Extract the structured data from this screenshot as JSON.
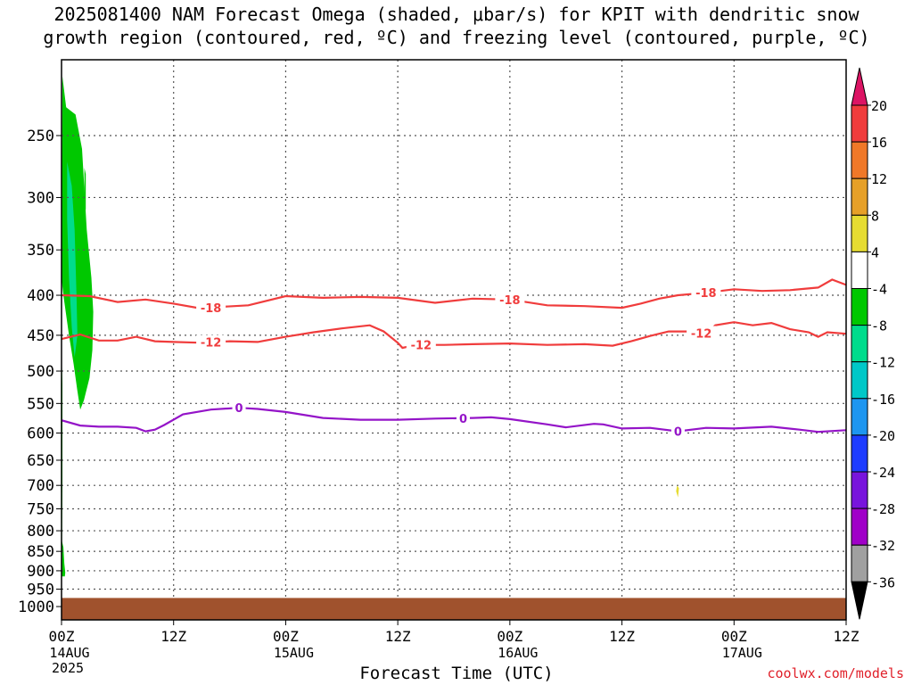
{
  "title_line1": "2025081400 NAM Forecast Omega (shaded, μbar/s) for KPIT with dendritic snow",
  "title_line2": "growth region (contoured, red, ºC) and freezing level (contoured, purple, ºC)",
  "credit": "coolwx.com/models",
  "chart_data": {
    "type": "time-height cross section",
    "title": "2025081400 NAM Forecast Omega (shaded, μbar/s) for KPIT with dendritic snow growth region (contoured, red, ºC) and freezing level (contoured, purple, ºC)",
    "xlabel": "Forecast Time (UTC)",
    "ylabel": "",
    "x_hours_range": [
      0,
      84
    ],
    "x_ticks": [
      {
        "hour": 0,
        "l1": "00Z",
        "l2": "14AUG",
        "l3": "2025"
      },
      {
        "hour": 12,
        "l1": "12Z",
        "l2": "",
        "l3": ""
      },
      {
        "hour": 24,
        "l1": "00Z",
        "l2": "15AUG",
        "l3": ""
      },
      {
        "hour": 36,
        "l1": "12Z",
        "l2": "",
        "l3": ""
      },
      {
        "hour": 48,
        "l1": "00Z",
        "l2": "16AUG",
        "l3": ""
      },
      {
        "hour": 60,
        "l1": "12Z",
        "l2": "",
        "l3": ""
      },
      {
        "hour": 72,
        "l1": "00Z",
        "l2": "17AUG",
        "l3": ""
      },
      {
        "hour": 84,
        "l1": "12Z",
        "l2": "",
        "l3": ""
      }
    ],
    "y_axis": "pressure (mb), log scale, inverted",
    "ylim": [
      200,
      1040
    ],
    "y_ticks": [
      250,
      300,
      350,
      400,
      450,
      500,
      550,
      600,
      650,
      700,
      750,
      800,
      850,
      900,
      950,
      1000
    ],
    "grid": true,
    "contours": [
      {
        "name": "-18",
        "color": "#f03c3c",
        "label_hours": [
          16,
          48,
          69
        ],
        "points": [
          [
            0,
            400
          ],
          [
            3,
            401
          ],
          [
            6,
            408
          ],
          [
            9,
            405
          ],
          [
            12,
            410
          ],
          [
            15,
            416
          ],
          [
            17,
            414
          ],
          [
            20,
            412
          ],
          [
            24,
            401
          ],
          [
            28,
            403
          ],
          [
            32,
            402
          ],
          [
            36,
            403
          ],
          [
            40,
            409
          ],
          [
            44,
            404
          ],
          [
            48,
            405
          ],
          [
            52,
            412
          ],
          [
            56,
            413
          ],
          [
            60,
            415
          ],
          [
            62,
            410
          ],
          [
            64,
            404
          ],
          [
            66,
            400
          ],
          [
            69,
            397
          ],
          [
            72,
            393
          ],
          [
            75,
            395
          ],
          [
            78,
            394
          ],
          [
            81,
            391
          ],
          [
            82.5,
            382
          ],
          [
            84,
            388
          ]
        ]
      },
      {
        "name": "-12",
        "color": "#f03c3c",
        "label_hours": [
          16,
          38.5,
          68.5
        ],
        "points": [
          [
            0,
            455
          ],
          [
            2,
            449
          ],
          [
            4,
            457
          ],
          [
            6,
            457
          ],
          [
            8,
            452
          ],
          [
            10,
            458
          ],
          [
            12,
            459
          ],
          [
            15,
            460
          ],
          [
            18,
            458
          ],
          [
            21,
            459
          ],
          [
            24,
            452
          ],
          [
            27,
            446
          ],
          [
            30,
            441
          ],
          [
            33,
            437
          ],
          [
            34.5,
            445
          ],
          [
            36,
            460
          ],
          [
            36.5,
            467
          ],
          [
            38,
            463
          ],
          [
            41,
            463
          ],
          [
            44,
            462
          ],
          [
            48,
            461
          ],
          [
            52,
            463
          ],
          [
            56,
            462
          ],
          [
            59,
            464
          ],
          [
            61,
            458
          ],
          [
            63,
            451
          ],
          [
            65,
            445
          ],
          [
            67,
            445
          ],
          [
            69,
            448
          ],
          [
            70,
            437
          ],
          [
            72,
            433
          ],
          [
            74,
            437
          ],
          [
            76,
            434
          ],
          [
            78,
            442
          ],
          [
            80,
            446
          ],
          [
            81,
            452
          ],
          [
            82,
            446
          ],
          [
            84,
            448
          ]
        ]
      },
      {
        "name": "0",
        "color": "#9414c8",
        "label_hours": [
          19,
          43,
          66
        ],
        "points": [
          [
            0,
            578
          ],
          [
            2,
            587
          ],
          [
            4,
            589
          ],
          [
            6,
            589
          ],
          [
            8,
            591
          ],
          [
            9,
            597
          ],
          [
            10,
            594
          ],
          [
            11,
            586
          ],
          [
            13,
            568
          ],
          [
            16,
            560
          ],
          [
            19,
            557
          ],
          [
            21,
            559
          ],
          [
            24,
            564
          ],
          [
            28,
            574
          ],
          [
            32,
            577
          ],
          [
            36,
            577
          ],
          [
            40,
            575
          ],
          [
            44,
            574
          ],
          [
            46,
            573
          ],
          [
            48,
            576
          ],
          [
            52,
            585
          ],
          [
            54,
            590
          ],
          [
            57,
            584
          ],
          [
            58,
            585
          ],
          [
            60,
            592
          ],
          [
            63,
            591
          ],
          [
            66,
            597
          ],
          [
            69,
            591
          ],
          [
            72,
            592
          ],
          [
            76,
            589
          ],
          [
            79,
            594
          ],
          [
            81,
            598
          ],
          [
            84,
            595
          ]
        ]
      }
    ],
    "shading": [
      {
        "range": "-8 to -4",
        "color": "#00c800",
        "desc": "upward motion near 00Z-03Z 14AUG from 210 to 560 mb"
      },
      {
        "range": "-12 to -8",
        "color": "#00dc8c",
        "desc": "core near 01Z 14AUG around 300-480 mb"
      },
      {
        "range": "4 to 8",
        "color": "#e6dc32",
        "desc": "small area near 18Z 16AUG at 710 mb"
      }
    ],
    "terrain": {
      "color": "#a0522d",
      "top_mb": 975
    },
    "colorbar": {
      "labels": [
        "20",
        "16",
        "12",
        "8",
        "4",
        "-4",
        "-8",
        "-12",
        "-16",
        "-20",
        "-24",
        "-28",
        "-32",
        "-36"
      ],
      "colors": [
        "#dc1464",
        "#f03c3c",
        "#f07828",
        "#e6a028",
        "#e6dc32",
        "#ffffff",
        "#00c800",
        "#00dc8c",
        "#00c8c8",
        "#1e96f0",
        "#1e3cff",
        "#7814dc",
        "#a000c8",
        "#a0a0a0",
        "#000000"
      ]
    }
  }
}
